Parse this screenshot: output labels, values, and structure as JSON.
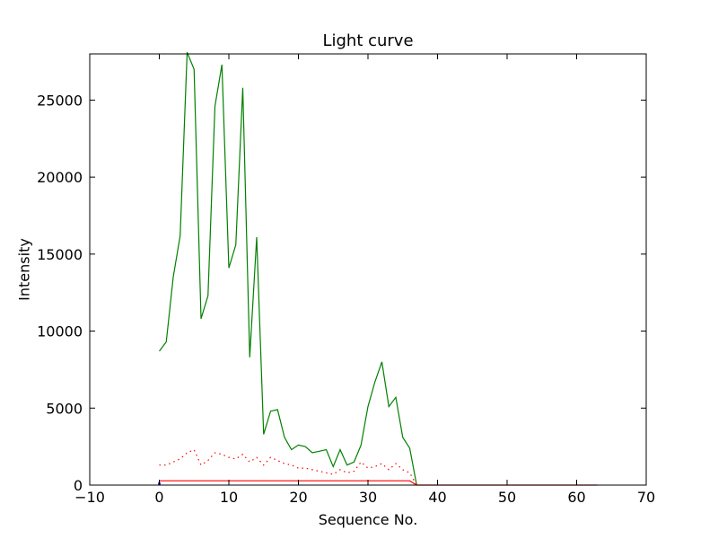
{
  "chart_data": {
    "type": "line",
    "title": "Light curve",
    "xlabel": "Sequence No.",
    "ylabel": "Intensity",
    "xlim": [
      -10,
      70
    ],
    "ylim": [
      0,
      28000
    ],
    "xticks": [
      -10,
      0,
      10,
      20,
      30,
      40,
      50,
      60,
      70
    ],
    "yticks": [
      0,
      5000,
      10000,
      15000,
      20000,
      25000
    ],
    "grid": false,
    "series": [
      {
        "color": "#008000",
        "style": "solid",
        "x": [
          0,
          1,
          2,
          3,
          4,
          5,
          6,
          7,
          8,
          9,
          10,
          11,
          12,
          13,
          14,
          15,
          16,
          17,
          18,
          19,
          20,
          21,
          22,
          23,
          24,
          25,
          26,
          27,
          28,
          29,
          30,
          31,
          32,
          33,
          34,
          35,
          36,
          37
        ],
        "y": [
          8700,
          9300,
          13500,
          16200,
          28100,
          27000,
          10800,
          12300,
          24600,
          27300,
          14100,
          15600,
          25800,
          8300,
          16100,
          3300,
          4800,
          4900,
          3100,
          2300,
          2600,
          2500,
          2100,
          2200,
          2300,
          1200,
          2300,
          1300,
          1500,
          2600,
          5100,
          6700,
          8000,
          5100,
          5700,
          3100,
          2400,
          0
        ]
      },
      {
        "color": "#ff0000",
        "style": "dotted",
        "x": [
          0,
          1,
          2,
          3,
          4,
          5,
          6,
          7,
          8,
          9,
          10,
          11,
          12,
          13,
          14,
          15,
          16,
          17,
          18,
          19,
          20,
          21,
          22,
          23,
          24,
          25,
          26,
          27,
          28,
          29,
          30,
          31,
          32,
          33,
          34,
          35,
          36,
          37
        ],
        "y": [
          1300,
          1300,
          1500,
          1700,
          2100,
          2300,
          1300,
          1600,
          2100,
          2000,
          1800,
          1700,
          2000,
          1500,
          1800,
          1300,
          1800,
          1600,
          1400,
          1300,
          1100,
          1100,
          1000,
          900,
          800,
          700,
          1000,
          800,
          900,
          1500,
          1100,
          1200,
          1400,
          1000,
          1400,
          1000,
          800,
          0
        ]
      },
      {
        "color": "#ff0000",
        "style": "solid",
        "x": [
          0,
          36,
          37,
          63
        ],
        "y": [
          280,
          280,
          0,
          0
        ]
      },
      {
        "color": "#0000ff",
        "style": "solid",
        "x": [
          0,
          0
        ],
        "y": [
          0,
          180
        ]
      }
    ]
  }
}
